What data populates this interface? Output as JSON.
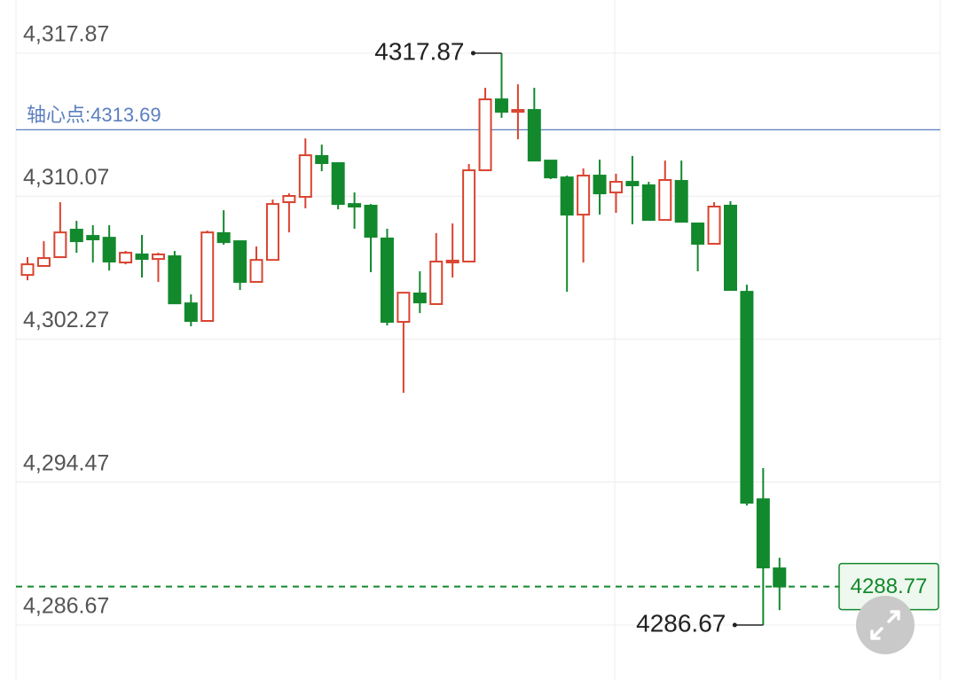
{
  "chart_data": {
    "type": "candlestick",
    "up_color": "#d9432f",
    "down_color": "#13892d",
    "ylim": [
      4283.67,
      4320.77
    ],
    "yticks": [
      {
        "value": 4317.87,
        "label": "4,317.87"
      },
      {
        "value": 4310.07,
        "label": "4,310.07"
      },
      {
        "value": 4302.27,
        "label": "4,302.27"
      },
      {
        "value": 4294.47,
        "label": "4,294.47"
      },
      {
        "value": 4286.67,
        "label": "4,286.67"
      }
    ],
    "grid": true,
    "open": [
      4305.77,
      4306.26,
      4306.74,
      4308.24,
      4307.9,
      4307.8,
      4306.45,
      4306.89,
      4306.64,
      4306.79,
      4304.22,
      4303.26,
      4308.05,
      4307.61,
      4305.39,
      4306.59,
      4309.74,
      4310.03,
      4312.26,
      4311.87,
      4309.64,
      4309.55,
      4307.76,
      4303.21,
      4304.76,
      4304.18,
      4306.45,
      4306.5,
      4311.48,
      4315.35,
      4314.67,
      4314.77,
      4312.01,
      4311.09,
      4309.06,
      4311.19,
      4310.27,
      4310.85,
      4310.66,
      4308.77,
      4310.9,
      4308.58,
      4307.47,
      4309.55,
      4304.85,
      4293.53,
      4289.76
    ],
    "high": [
      4306.74,
      4307.61,
      4309.74,
      4308.72,
      4308.48,
      4308.48,
      4307.08,
      4307.95,
      4306.98,
      4307.08,
      4304.71,
      4308.19,
      4309.3,
      4307.61,
      4307.32,
      4309.88,
      4310.22,
      4313.22,
      4312.88,
      4311.87,
      4310.27,
      4309.64,
      4308.29,
      4304.8,
      4305.97,
      4308.05,
      4308.58,
      4311.82,
      4315.98,
      4317.87,
      4316.17,
      4315.98,
      4312.01,
      4311.19,
      4311.58,
      4312.06,
      4311.29,
      4312.26,
      4310.85,
      4312.01,
      4312.01,
      4308.58,
      4309.74,
      4309.79,
      4305.24,
      4295.23,
      4290.34
    ],
    "low": [
      4305.48,
      4306.26,
      4306.74,
      4306.98,
      4306.45,
      4306.01,
      4306.35,
      4305.63,
      4305.39,
      4304.22,
      4302.97,
      4303.26,
      4307.42,
      4304.95,
      4305.39,
      4306.59,
      4308.09,
      4309.4,
      4311.43,
      4309.35,
      4308.29,
      4305.92,
      4303.01,
      4299.34,
      4303.69,
      4304.18,
      4305.63,
      4306.5,
      4311.48,
      4314.34,
      4313.17,
      4312.01,
      4311.0,
      4304.85,
      4306.45,
      4309.06,
      4309.16,
      4308.53,
      4308.77,
      4308.77,
      4308.67,
      4305.97,
      4307.47,
      4304.95,
      4293.19,
      4286.67,
      4287.48
    ],
    "close": [
      4306.35,
      4306.69,
      4308.09,
      4307.61,
      4307.71,
      4306.5,
      4306.98,
      4306.64,
      4306.89,
      4304.22,
      4303.26,
      4308.09,
      4307.56,
      4305.39,
      4306.59,
      4309.64,
      4310.08,
      4312.3,
      4311.87,
      4309.64,
      4309.5,
      4307.85,
      4303.21,
      4304.8,
      4304.27,
      4306.5,
      4306.55,
      4311.48,
      4315.35,
      4314.67,
      4314.77,
      4312.01,
      4311.09,
      4309.06,
      4311.19,
      4310.22,
      4310.85,
      4310.66,
      4308.77,
      4310.95,
      4308.67,
      4307.47,
      4309.5,
      4304.95,
      4293.34,
      4289.81,
      4288.77
    ],
    "pivot": 4313.69,
    "pivot_label": "轴心点:4313.69",
    "pivot_color": "#5b7fbf",
    "current_price": 4288.77,
    "max_annotation": 4317.87,
    "min_annotation": 4286.67
  }
}
